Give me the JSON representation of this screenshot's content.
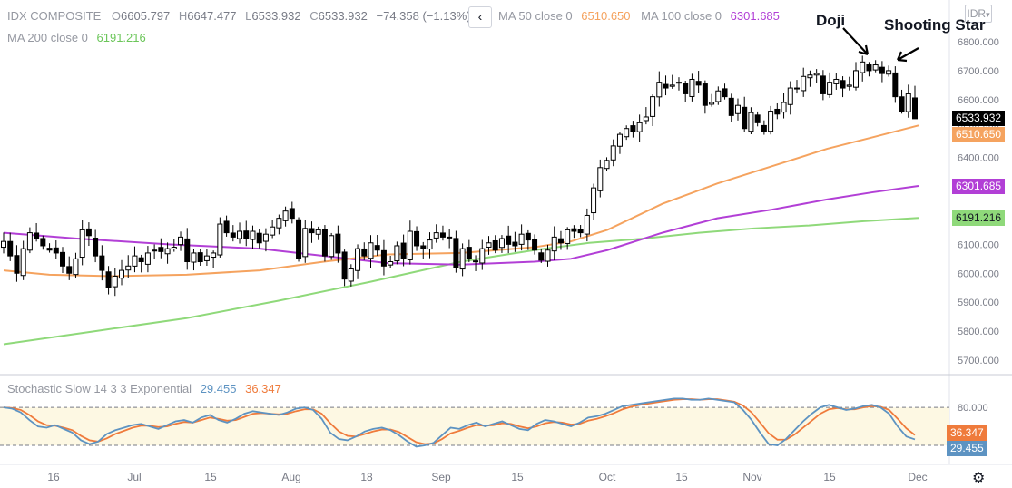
{
  "header": {
    "symbol": "IDX COMPOSITE",
    "open_label": "O",
    "open": "6605.797",
    "high_label": "H",
    "high": "6647.477",
    "low_label": "L",
    "low": "6533.932",
    "close_label": "C",
    "close": "6533.932",
    "change": "−74.358 (−1.13%)",
    "ma50_label": "MA 50 close 0",
    "ma50_value": "6510.650",
    "ma100_label": "MA 100 close 0",
    "ma100_value": "6301.685",
    "ma200_label": "MA 200 close 0",
    "ma200_value": "6191.216",
    "collapse_icon": "‹",
    "currency": "IDR",
    "currency_icon": "▾"
  },
  "annotations": {
    "doji": "Doji",
    "shooting_star": "Shooting Star"
  },
  "price_labels": {
    "last": "6533.932",
    "ma50": "6510.650",
    "ma100": "6301.685",
    "ma200": "6191.216"
  },
  "stoch_header": {
    "label": "Stochastic Slow 14 3 3 Exponential",
    "k": "29.455",
    "d": "36.347"
  },
  "stoch_labels": {
    "k": "29.455",
    "d": "36.347"
  },
  "settings_icon": "gear-icon",
  "colors": {
    "up_body": "#ffffff",
    "down_body": "#000000",
    "wick": "#000000",
    "ma50": "#f5a35f",
    "ma100": "#b23fd6",
    "ma200": "#8fd97a",
    "stoch_k": "#5d93c2",
    "stoch_d": "#ef7b3c",
    "stoch_band": "#fdf8e3",
    "last_price_bg": "#000000"
  },
  "chart_data": [
    {
      "type": "candlestick",
      "title": "IDX COMPOSITE",
      "ylim": [
        5650,
        6880
      ],
      "y_ticks": [
        "6800.000",
        "6700.000",
        "6600.000",
        "6500.000",
        "6400.000",
        "6300.000",
        "6200.000",
        "6100.000",
        "6000.000",
        "5900.000",
        "5800.000",
        "5700.000"
      ],
      "x_ticks": [
        "16",
        "Jul",
        "15",
        "Aug",
        "18",
        "Sep",
        "15",
        "Oct",
        "15",
        "Nov",
        "15",
        "Dec"
      ],
      "closes": [
        6110,
        6060,
        6000,
        6085,
        6140,
        6120,
        6095,
        6080,
        6070,
        6025,
        6000,
        6050,
        6150,
        6130,
        6060,
        6010,
        5950,
        5990,
        6010,
        6025,
        6060,
        6040,
        6070,
        6080,
        6075,
        6085,
        6090,
        6125,
        6040,
        6070,
        6040,
        6060,
        6070,
        6170,
        6140,
        6125,
        6145,
        6120,
        6145,
        6105,
        6135,
        6160,
        6190,
        6215,
        6190,
        6050,
        6155,
        6140,
        6150,
        6060,
        6130,
        6070,
        5980,
        6015,
        6085,
        6060,
        6105,
        6080,
        6025,
        6040,
        6095,
        6050,
        6145,
        6095,
        6085,
        6115,
        6140,
        6125,
        6125,
        6020,
        6085,
        6050,
        6040,
        6085,
        6105,
        6080,
        6120,
        6100,
        6095,
        6135,
        6115,
        6080,
        6045,
        6080,
        6125,
        6105,
        6150,
        6145,
        6140,
        6200,
        6295,
        6365,
        6390,
        6440,
        6480,
        6500,
        6490,
        6520,
        6540,
        6610,
        6660,
        6640,
        6650,
        6660,
        6620,
        6670,
        6650,
        6580,
        6590,
        6630,
        6610,
        6545,
        6580,
        6500,
        6555,
        6520,
        6490,
        6560,
        6550,
        6590,
        6640,
        6640,
        6680,
        6685,
        6690,
        6620,
        6660,
        6670,
        6640,
        6650,
        6700,
        6730,
        6700,
        6720,
        6690,
        6700,
        6610,
        6560,
        6620,
        6534
      ],
      "series": [
        {
          "name": "MA 50 close 0",
          "last": 6510.65
        },
        {
          "name": "MA 100 close 0",
          "last": 6301.685
        },
        {
          "name": "MA 200 close 0",
          "last": 6191.216
        }
      ],
      "last_open": 6605.797,
      "last_high": 6647.477,
      "last_low": 6533.932,
      "last_close": 6533.932
    },
    {
      "type": "line",
      "title": "Stochastic Slow 14 3 3 Exponential",
      "ylim": [
        0,
        100
      ],
      "y_ticks": [
        "80.000"
      ],
      "band": [
        20,
        80
      ],
      "series": [
        {
          "name": "%K",
          "values": [
            80,
            78,
            72,
            60,
            50,
            48,
            52,
            46,
            40,
            28,
            22,
            26,
            38,
            44,
            48,
            52,
            54,
            50,
            46,
            52,
            58,
            60,
            56,
            64,
            68,
            60,
            56,
            62,
            70,
            74,
            72,
            70,
            68,
            72,
            78,
            80,
            76,
            62,
            40,
            30,
            28,
            34,
            42,
            46,
            48,
            44,
            36,
            26,
            18,
            20,
            24,
            36,
            48,
            46,
            52,
            56,
            50,
            54,
            58,
            52,
            46,
            44,
            54,
            60,
            58,
            54,
            50,
            56,
            64,
            66,
            70,
            76,
            82,
            84,
            86,
            88,
            90,
            92,
            94,
            94,
            92,
            92,
            94,
            92,
            90,
            88,
            76,
            60,
            40,
            22,
            20,
            30,
            44,
            58,
            70,
            80,
            84,
            80,
            76,
            78,
            82,
            84,
            80,
            70,
            50,
            34,
            29.455
          ]
        },
        {
          "name": "%D",
          "values": [
            80,
            79,
            76,
            68,
            58,
            52,
            51,
            48,
            44,
            35,
            28,
            26,
            31,
            38,
            43,
            48,
            51,
            51,
            49,
            50,
            54,
            57,
            56,
            60,
            64,
            62,
            59,
            60,
            65,
            70,
            71,
            70,
            69,
            70,
            74,
            77,
            77,
            70,
            55,
            42,
            35,
            34,
            38,
            42,
            45,
            45,
            41,
            33,
            25,
            22,
            23,
            30,
            39,
            43,
            48,
            52,
            51,
            52,
            55,
            54,
            50,
            47,
            50,
            55,
            57,
            56,
            53,
            54,
            59,
            62,
            66,
            71,
            77,
            81,
            84,
            86,
            88,
            90,
            92,
            93,
            93,
            92,
            93,
            93,
            91,
            89,
            83,
            72,
            56,
            39,
            29,
            29,
            37,
            48,
            59,
            70,
            77,
            79,
            77,
            77,
            80,
            82,
            81,
            76,
            62,
            47,
            36.347
          ]
        }
      ]
    }
  ]
}
